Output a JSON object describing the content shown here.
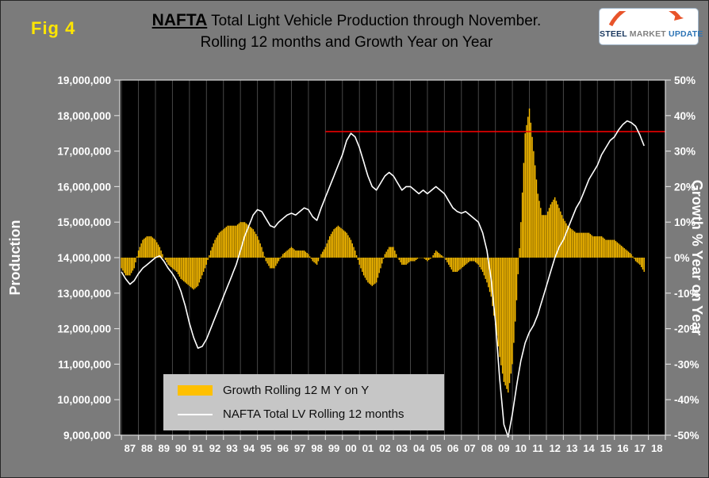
{
  "figure_label": "Fig 4",
  "title": {
    "prefix": "NAFTA",
    "line1_rest": " Total Light Vehicle Production through November.",
    "line2": "Rolling 12 months and Growth Year on Year"
  },
  "logo": {
    "words": [
      "STEEL",
      "MARKET",
      "UPDATE"
    ]
  },
  "axes": {
    "left_title": "Production",
    "right_title": "Growth % Year on Year",
    "left_ticks": [
      "19,000,000",
      "18,000,000",
      "17,000,000",
      "16,000,000",
      "15,000,000",
      "14,000,000",
      "13,000,000",
      "12,000,000",
      "11,000,000",
      "10,000,000",
      "9,000,000"
    ],
    "right_ticks": [
      "50%",
      "40%",
      "30%",
      "20%",
      "10%",
      "0%",
      "-10%",
      "-20%",
      "-30%",
      "-40%",
      "-50%"
    ],
    "x_ticks": [
      "87",
      "88",
      "89",
      "90",
      "91",
      "92",
      "93",
      "94",
      "95",
      "96",
      "97",
      "98",
      "99",
      "00",
      "01",
      "02",
      "03",
      "04",
      "05",
      "06",
      "07",
      "08",
      "09",
      "10",
      "11",
      "12",
      "13",
      "14",
      "15",
      "16",
      "17",
      "18"
    ]
  },
  "legend": {
    "items": [
      {
        "label": "Growth Rolling 12 M Y on Y",
        "color": "#ffc000"
      },
      {
        "label": "NAFTA Total LV Rolling 12 months",
        "color": "#ffffff"
      }
    ]
  },
  "colors": {
    "background": "#7b7b7b",
    "plot_background": "#000000",
    "bar": "#ffc000",
    "line": "#ffffff",
    "reference": "#ff0000",
    "axis_text": "#ffffff",
    "fig_label": "#ffe600"
  },
  "chart_data": {
    "type": "combo",
    "title": "NAFTA Total Light Vehicle Production through November. Rolling 12 months and Growth Year on Year",
    "x_start": 1987,
    "x_step": 0.25,
    "x_range": [
      1986.9,
      2019.0
    ],
    "y_left": {
      "label": "Production",
      "min": 9000000,
      "max": 19000000,
      "step": 1000000
    },
    "y_right": {
      "label": "Growth % Year on Year",
      "min": -50,
      "max": 50,
      "step": 10,
      "unit": "%"
    },
    "legend_position": "bottom-center-inside",
    "grid": "vertical-years-only",
    "series": [
      {
        "name": "Growth Rolling 12 M Y on Y",
        "type": "bar",
        "axis": "right",
        "color": "#ffc000",
        "unit": "percent",
        "values": [
          -3,
          -5,
          -5,
          -3,
          2,
          5,
          6,
          6,
          5,
          3,
          0,
          -2,
          -3,
          -4,
          -6,
          -7,
          -8,
          -9,
          -8,
          -5,
          -2,
          2,
          5,
          7,
          8,
          9,
          9,
          9,
          10,
          10,
          9,
          8,
          6,
          3,
          -1,
          -3,
          -3,
          -1,
          1,
          2,
          3,
          2,
          2,
          2,
          1,
          -1,
          -2,
          1,
          3,
          6,
          8,
          9,
          8,
          7,
          5,
          2,
          -2,
          -5,
          -7,
          -8,
          -7,
          -3,
          1,
          3,
          3,
          0,
          -2,
          -2,
          -1,
          -1,
          0,
          0,
          -1,
          0,
          2,
          1,
          0,
          -2,
          -4,
          -4,
          -3,
          -2,
          -1,
          -1,
          -2,
          -4,
          -7,
          -11,
          -19,
          -28,
          -35,
          -38,
          -30,
          -12,
          10,
          35,
          42,
          30,
          18,
          12,
          12,
          15,
          17,
          14,
          11,
          9,
          8,
          7,
          7,
          7,
          7,
          6,
          6,
          6,
          5,
          5,
          5,
          4,
          3,
          2,
          1,
          -1,
          -2,
          -4
        ]
      },
      {
        "name": "NAFTA Total LV Rolling 12 months",
        "type": "line",
        "axis": "left",
        "color": "#ffffff",
        "unit": "millions",
        "values": [
          13.6,
          13.4,
          13.25,
          13.35,
          13.55,
          13.7,
          13.8,
          13.9,
          14.0,
          14.05,
          13.9,
          13.7,
          13.55,
          13.35,
          13.05,
          12.65,
          12.15,
          11.75,
          11.45,
          11.5,
          11.7,
          12.0,
          12.3,
          12.6,
          12.9,
          13.2,
          13.5,
          13.8,
          14.2,
          14.6,
          14.9,
          15.2,
          15.35,
          15.3,
          15.1,
          14.9,
          14.85,
          15.0,
          15.1,
          15.2,
          15.25,
          15.2,
          15.3,
          15.4,
          15.35,
          15.15,
          15.05,
          15.4,
          15.7,
          16.0,
          16.3,
          16.6,
          16.9,
          17.3,
          17.5,
          17.4,
          17.1,
          16.7,
          16.3,
          16.0,
          15.9,
          16.1,
          16.3,
          16.4,
          16.3,
          16.1,
          15.9,
          16.0,
          16.0,
          15.9,
          15.8,
          15.9,
          15.8,
          15.9,
          16.0,
          15.9,
          15.8,
          15.6,
          15.4,
          15.3,
          15.25,
          15.3,
          15.2,
          15.1,
          15.0,
          14.7,
          14.2,
          13.4,
          12.2,
          10.6,
          9.3,
          8.95,
          9.6,
          10.4,
          11.1,
          11.6,
          11.9,
          12.1,
          12.4,
          12.8,
          13.2,
          13.6,
          14.0,
          14.3,
          14.5,
          14.8,
          15.1,
          15.4,
          15.6,
          15.9,
          16.2,
          16.4,
          16.6,
          16.9,
          17.1,
          17.3,
          17.4,
          17.6,
          17.75,
          17.85,
          17.8,
          17.7,
          17.45,
          17.15
        ]
      }
    ],
    "reference_line": {
      "value": 17550000,
      "axis": "left",
      "x_from": 1999,
      "x_to": 2019,
      "color": "#ff0000"
    }
  }
}
